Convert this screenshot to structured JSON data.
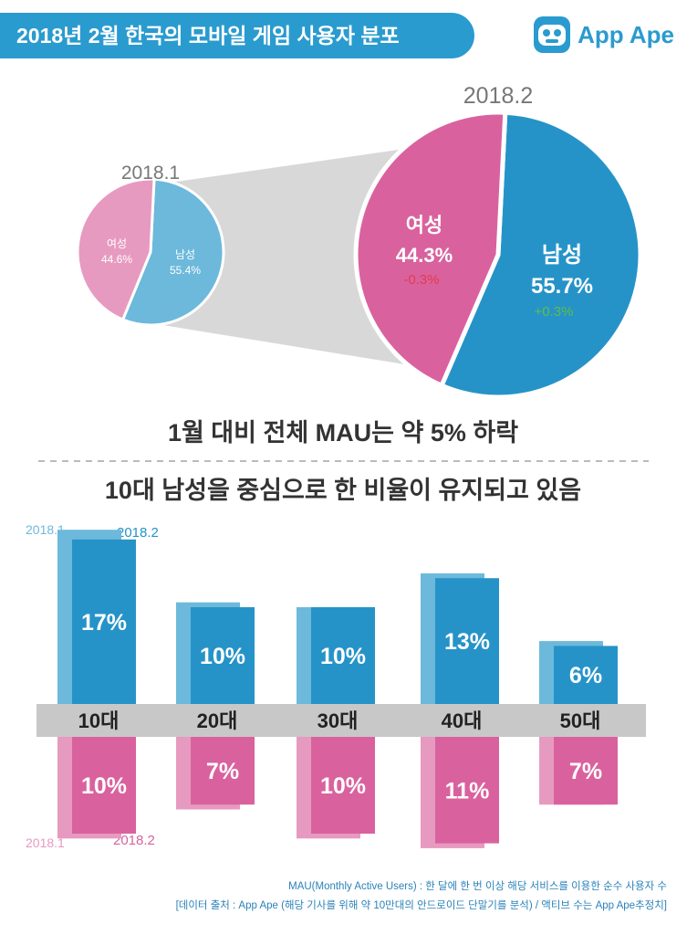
{
  "header": {
    "title": "2018년 2월 한국의 모바일 게임 사용자 분포",
    "logo_text": "App Ape"
  },
  "colors": {
    "male_prev": "#6cb9db",
    "male_curr": "#2693c8",
    "female_prev": "#e79ac0",
    "female_curr": "#d9629e",
    "negative": "#e23b4e",
    "positive": "#5cbf4a",
    "band": "#c8c8c8"
  },
  "chart_data": [
    {
      "type": "pie",
      "title": "2018.1",
      "slices": [
        {
          "label": "남성",
          "value": 55.4,
          "display": "55.4%"
        },
        {
          "label": "여성",
          "value": 44.6,
          "display": "44.6%"
        }
      ]
    },
    {
      "type": "pie",
      "title": "2018.2",
      "slices": [
        {
          "label": "남성",
          "value": 55.7,
          "display": "55.7%",
          "change": "+0.3%"
        },
        {
          "label": "여성",
          "value": 44.3,
          "display": "44.3%",
          "change": "-0.3%"
        }
      ]
    },
    {
      "type": "bar",
      "categories": [
        "10대",
        "20대",
        "30대",
        "40대",
        "50대"
      ],
      "series": [
        {
          "name": "2018.1",
          "group": "male",
          "values": [
            18,
            10.5,
            10,
            13.5,
            6.5
          ]
        },
        {
          "name": "2018.2",
          "group": "male",
          "values": [
            17,
            10,
            10,
            13,
            6
          ]
        },
        {
          "name": "2018.1",
          "group": "female",
          "values": [
            10.5,
            7.5,
            10.5,
            11.5,
            7
          ]
        },
        {
          "name": "2018.2",
          "group": "female",
          "values": [
            10,
            7,
            10,
            11,
            7
          ]
        }
      ],
      "data_labels": {
        "male": [
          "17%",
          "10%",
          "10%",
          "13%",
          "6%"
        ],
        "female": [
          "10%",
          "7%",
          "10%",
          "11%",
          "7%"
        ]
      }
    }
  ],
  "headline_1": "1월 대비 전체 MAU는 약 5% 하락",
  "headline_2": "10대 남성을 중심으로 한 비율이 유지되고 있음",
  "legend": {
    "male_prev": "2018.1",
    "male_curr": "2018.2",
    "female_prev": "2018.1",
    "female_curr": "2018.2"
  },
  "footnotes": {
    "line1": "MAU(Monthly Active Users) : 한 달에 한 번 이상 해당 서비스를 이용한 순수 사용자 수",
    "line2": "[데이터 출처 : App Ape (해당 기사를 위해 약 10만대의 안드로이드 단말기를 분석) / 액티브 수는 App Ape추정치]"
  }
}
